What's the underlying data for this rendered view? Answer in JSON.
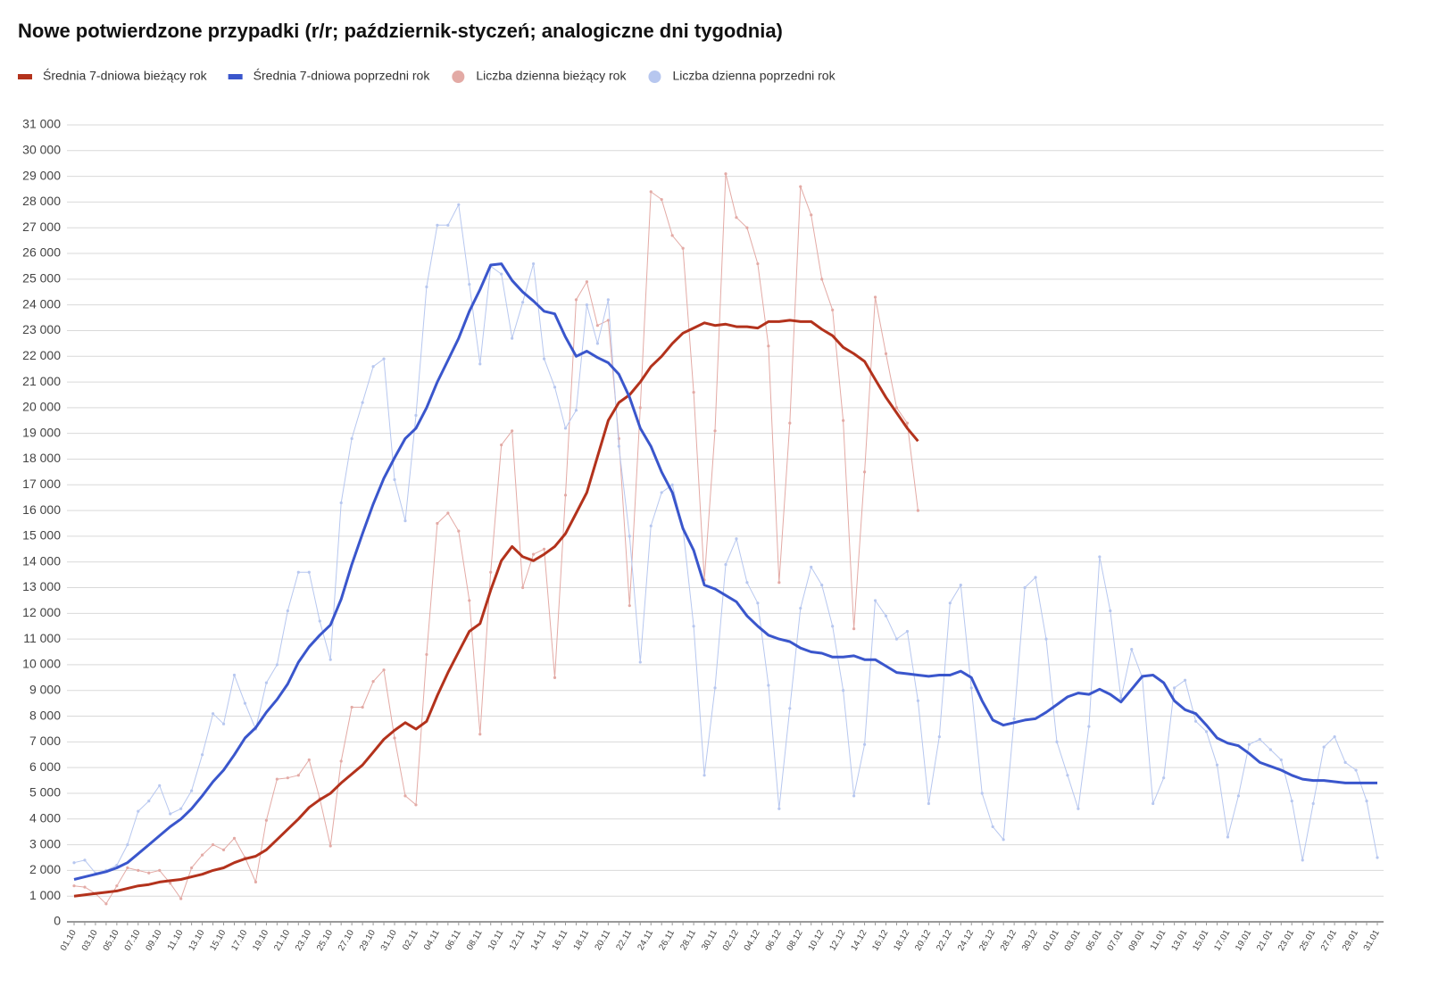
{
  "chart_data": {
    "type": "line",
    "title": "Nowe potwierdzone przypadki (r/r; październik-styczeń; analogiczne dni tygodnia)",
    "categories": [
      "01.10",
      null,
      "03.10",
      null,
      "05.10",
      null,
      "07.10",
      null,
      "09.10",
      null,
      "11.10",
      null,
      "13.10",
      null,
      "15.10",
      null,
      "17.10",
      null,
      "19.10",
      null,
      "21.10",
      null,
      "23.10",
      null,
      "25.10",
      null,
      "27.10",
      null,
      "29.10",
      null,
      "31.10",
      null,
      "02.11",
      null,
      "04.11",
      null,
      "06.11",
      null,
      "08.11",
      null,
      "10.11",
      null,
      "12.11",
      null,
      "14.11",
      null,
      "16.11",
      null,
      "18.11",
      null,
      "20.11",
      null,
      "22.11",
      null,
      "24.11",
      null,
      "26.11",
      null,
      "28.11",
      null,
      "30.11",
      null,
      "02.12",
      null,
      "04.12",
      null,
      "06.12",
      null,
      "08.12",
      null,
      "10.12",
      null,
      "12.12",
      null,
      "14.12",
      null,
      "16.12",
      null,
      "18.12",
      null,
      "20.12",
      null,
      "22.12",
      null,
      "24.12",
      null,
      "26.12",
      null,
      "28.12",
      null,
      "30.12",
      null,
      "01.01",
      null,
      "03.01",
      null,
      "05.01",
      null,
      "07.01",
      null,
      "09.01",
      null,
      "11.01",
      null,
      "13.01",
      null,
      "15.01",
      null,
      "17.01",
      null,
      "19.01",
      null,
      "21.01",
      null,
      "23.01",
      null,
      "25.01",
      null,
      "27.01",
      null,
      "29.01",
      null,
      "31.01"
    ],
    "series": [
      {
        "name": "Średnia 7-dniowa bieżący rok",
        "color": "#b3321c",
        "line_width": 3,
        "markers": false,
        "values": [
          1000,
          1050,
          1100,
          1150,
          1200,
          1300,
          1400,
          1450,
          1550,
          1600,
          1650,
          1750,
          1850,
          2000,
          2100,
          2300,
          2450,
          2550,
          2800,
          3200,
          3600,
          4000,
          4450,
          4750,
          5000,
          5400,
          5750,
          6100,
          6600,
          7100,
          7450,
          7750,
          7500,
          7800,
          8800,
          9700,
          10500,
          11300,
          11600,
          12900,
          14050,
          14600,
          14200,
          14050,
          14300,
          14600,
          15100,
          15900,
          16700,
          18100,
          19500,
          20200,
          20500,
          21000,
          21600,
          22000,
          22500,
          22900,
          23100,
          23300,
          23200,
          23250,
          23150,
          23150,
          23100,
          23350,
          23350,
          23400,
          23350,
          23350,
          23050,
          22800,
          22350,
          22100,
          21800,
          21100,
          20400,
          19800,
          19200,
          18700,
          null,
          null,
          null,
          null,
          null,
          null,
          null,
          null,
          null,
          null,
          null,
          null,
          null,
          null,
          null,
          null,
          null,
          null,
          null,
          null,
          null,
          null,
          null,
          null,
          null,
          null,
          null,
          null,
          null,
          null,
          null,
          null,
          null,
          null,
          null,
          null,
          null,
          null,
          null,
          null,
          null,
          null,
          null
        ]
      },
      {
        "name": "Średnia 7-dniowa poprzedni rok",
        "color": "#3a56cc",
        "line_width": 3,
        "markers": false,
        "values": [
          1650,
          1750,
          1850,
          1950,
          2100,
          2300,
          2650,
          3000,
          3350,
          3700,
          4000,
          4400,
          4900,
          5450,
          5900,
          6500,
          7150,
          7550,
          8150,
          8650,
          9250,
          10100,
          10700,
          11150,
          11550,
          12550,
          13900,
          15100,
          16250,
          17250,
          18050,
          18800,
          19200,
          20000,
          21000,
          21850,
          22700,
          23750,
          24600,
          25550,
          25600,
          24950,
          24500,
          24150,
          23750,
          23650,
          22750,
          22000,
          22200,
          21950,
          21750,
          21300,
          20400,
          19200,
          18500,
          17500,
          16700,
          15300,
          14450,
          13100,
          12950,
          12700,
          12450,
          11900,
          11500,
          11150,
          11000,
          10900,
          10650,
          10500,
          10450,
          10300,
          10300,
          10350,
          10200,
          10200,
          9950,
          9700,
          9650,
          9600,
          9550,
          9600,
          9600,
          9750,
          9500,
          8600,
          7850,
          7650,
          7750,
          7850,
          7900,
          8150,
          8450,
          8750,
          8900,
          8850,
          9050,
          8850,
          8550,
          9050,
          9550,
          9600,
          9300,
          8600,
          8250,
          8100,
          7650,
          7150,
          6950,
          6850,
          6550,
          6200,
          6050,
          5900,
          5700,
          5550,
          5500,
          5500,
          5450,
          5400,
          5400,
          5400,
          5400
        ]
      },
      {
        "name": "Liczba dzienna bieżący rok",
        "color": "#e3aaa5",
        "line_width": 1,
        "markers": true,
        "values": [
          1400,
          1350,
          1100,
          700,
          1400,
          2100,
          2000,
          1900,
          2000,
          1500,
          900,
          2100,
          2600,
          3000,
          2800,
          3250,
          2500,
          1550,
          3950,
          5550,
          5600,
          5700,
          6300,
          4800,
          2950,
          6250,
          8350,
          8350,
          9350,
          9800,
          7150,
          4900,
          4550,
          10400,
          15500,
          15900,
          15200,
          12500,
          7300,
          13600,
          18550,
          19100,
          13000,
          14300,
          14500,
          9500,
          16600,
          24200,
          24900,
          23200,
          23400,
          18800,
          12300,
          20000,
          28400,
          28100,
          26700,
          26200,
          20600,
          13300,
          19100,
          29100,
          27400,
          27000,
          25600,
          22400,
          13200,
          19400,
          28600,
          27500,
          25000,
          23800,
          19500,
          11400,
          17500,
          24300,
          22100,
          20000,
          19400,
          16000,
          null,
          null,
          null,
          null,
          null,
          null,
          null,
          null,
          null,
          null,
          null,
          null,
          null,
          null,
          null,
          null,
          null,
          null,
          null,
          null,
          null,
          null,
          null,
          null,
          null,
          null,
          null,
          null,
          null,
          null,
          null,
          null,
          null,
          null,
          null,
          null,
          null,
          null,
          null,
          null,
          null,
          null,
          null
        ]
      },
      {
        "name": "Liczba dzienna poprzedni rok",
        "color": "#b7c7ef",
        "line_width": 1,
        "markers": true,
        "values": [
          2300,
          2400,
          1900,
          2000,
          2200,
          3000,
          4300,
          4700,
          5300,
          4200,
          4400,
          5100,
          6500,
          8100,
          7700,
          9600,
          8500,
          7500,
          9300,
          10000,
          12100,
          13600,
          13600,
          11700,
          10200,
          16300,
          18800,
          20200,
          21600,
          21900,
          17200,
          15600,
          19700,
          24700,
          27100,
          27100,
          27900,
          24800,
          21700,
          25500,
          25200,
          22700,
          24100,
          25600,
          21900,
          20800,
          19200,
          19900,
          24000,
          22500,
          24200,
          18500,
          15000,
          10100,
          15400,
          16700,
          17000,
          15300,
          11500,
          5700,
          9100,
          13900,
          14900,
          13200,
          12400,
          9200,
          4400,
          8300,
          12200,
          13800,
          13100,
          11500,
          9000,
          4900,
          6900,
          12500,
          11900,
          11000,
          11300,
          8600,
          4600,
          7200,
          12400,
          13100,
          9100,
          5000,
          3700,
          3200,
          7900,
          13000,
          13400,
          11000,
          7000,
          5700,
          4400,
          7600,
          14200,
          12100,
          8700,
          10600,
          9500,
          4600,
          5600,
          9100,
          9400,
          7800,
          7400,
          6100,
          3300,
          4900,
          6900,
          7100,
          6700,
          6300,
          4700,
          2400,
          4600,
          6800,
          7200,
          6200,
          5900,
          4700,
          2500
        ]
      }
    ],
    "ylim": [
      0,
      31000
    ],
    "yticks": [
      0,
      {
        "value": 1000,
        "label": "1 000"
      },
      {
        "value": 2000,
        "label": "2 000"
      },
      {
        "value": 3000,
        "label": "3 000"
      },
      {
        "value": 4000,
        "label": "4 000"
      },
      {
        "value": 5000,
        "label": "5 000"
      },
      {
        "value": 6000,
        "label": "6 000"
      },
      {
        "value": 7000,
        "label": "7 000"
      },
      {
        "value": 8000,
        "label": "8 000"
      },
      {
        "value": 9000,
        "label": "9 000"
      },
      {
        "value": 10000,
        "label": "10 000"
      },
      {
        "value": 11000,
        "label": "11 000"
      },
      {
        "value": 12000,
        "label": "12 000"
      },
      {
        "value": 13000,
        "label": "13 000"
      },
      {
        "value": 14000,
        "label": "14 000"
      },
      {
        "value": 15000,
        "label": "15 000"
      },
      {
        "value": 16000,
        "label": "16 000"
      },
      {
        "value": 17000,
        "label": "17 000"
      },
      {
        "value": 18000,
        "label": "18 000"
      },
      {
        "value": 19000,
        "label": "19 000"
      },
      {
        "value": 20000,
        "label": "20 000"
      },
      {
        "value": 21000,
        "label": "21 000"
      },
      {
        "value": 22000,
        "label": "22 000"
      },
      {
        "value": 23000,
        "label": "23 000"
      },
      {
        "value": 24000,
        "label": "24 000"
      },
      {
        "value": 25000,
        "label": "25 000"
      },
      {
        "value": 26000,
        "label": "26 000"
      },
      {
        "value": 27000,
        "label": "27 000"
      },
      {
        "value": 28000,
        "label": "28 000"
      },
      {
        "value": 29000,
        "label": "29 000"
      },
      {
        "value": 30000,
        "label": "30 000"
      },
      {
        "value": 31000,
        "label": "31 000"
      }
    ],
    "grid": true,
    "legend": "top"
  }
}
